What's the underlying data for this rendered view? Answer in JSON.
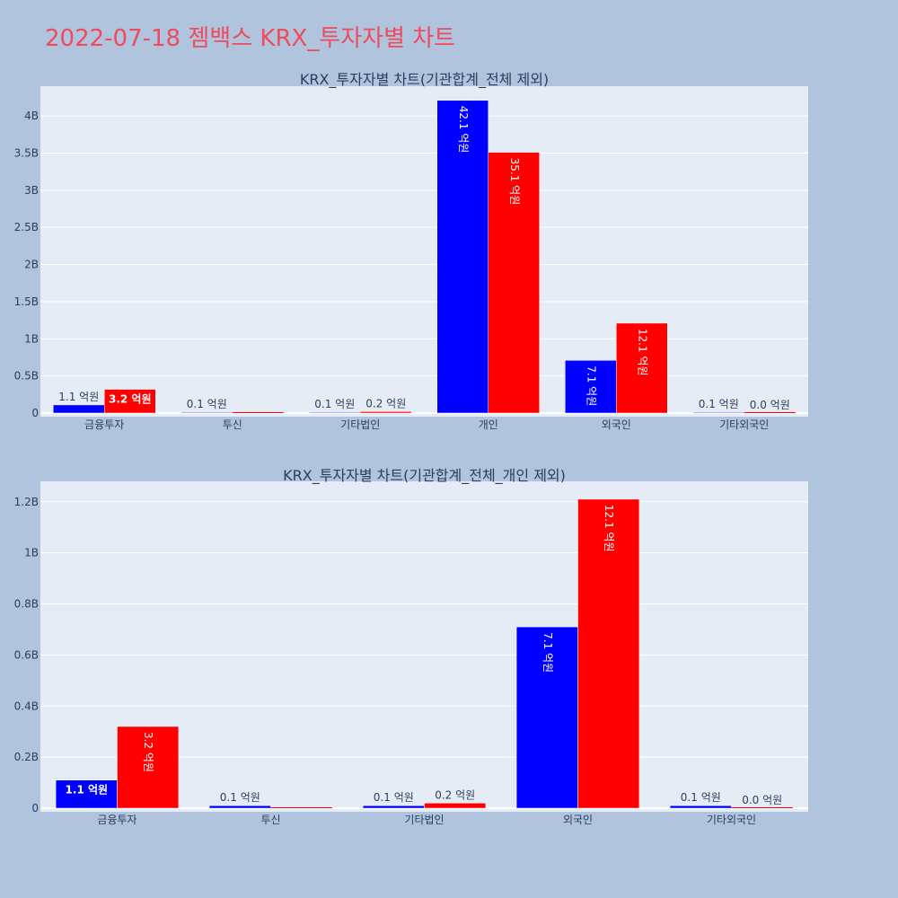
{
  "page": {
    "title": "2022-07-18 젬백스 KRX_투자자별 차트"
  },
  "colors": {
    "background": "#b0c4de",
    "plot_bg": "#e5ecf6",
    "grid": "#ffffff",
    "title": "#ef4b5e",
    "axis_text": "#2a3f5f",
    "series_blue": "#0000ff",
    "series_red": "#ff0000"
  },
  "chart_data": [
    {
      "type": "bar",
      "title": "KRX_투자자별 차트(기관합계_전체 제외)",
      "categories": [
        "금융투자",
        "투신",
        "기타법인",
        "개인",
        "외국인",
        "기타외국인"
      ],
      "ylim": [
        0,
        4.4
      ],
      "y_unit": "B",
      "yticks": [
        0,
        0.5,
        1,
        1.5,
        2,
        2.5,
        3,
        3.5,
        4
      ],
      "ytick_labels": [
        "0",
        "0.5B",
        "1B",
        "1.5B",
        "2B",
        "2.5B",
        "3B",
        "3.5B",
        "4B"
      ],
      "grid": true,
      "series": [
        {
          "color": "#0000ff",
          "values": [
            0.11,
            0.01,
            0.01,
            4.21,
            0.71,
            0.01
          ],
          "labels": [
            "1.1 억원",
            "0.1 억원",
            "0.1 억원",
            "42.1 억원",
            "7.1 억원",
            "0.1 억원"
          ]
        },
        {
          "color": "#ff0000",
          "values": [
            0.32,
            0.0,
            0.02,
            3.51,
            1.21,
            0.0
          ],
          "labels": [
            "3.2 억원",
            "",
            "0.2 억원",
            "35.1 억원",
            "12.1 억원",
            "0.0 억원"
          ]
        }
      ]
    },
    {
      "type": "bar",
      "title": "KRX_투자자별 차트(기관합계_전체_개인 제외)",
      "categories": [
        "금융투자",
        "투신",
        "기타법인",
        "외국인",
        "기타외국인"
      ],
      "ylim": [
        0,
        1.28
      ],
      "y_unit": "B",
      "yticks": [
        0,
        0.2,
        0.4,
        0.6,
        0.8,
        1,
        1.2
      ],
      "ytick_labels": [
        "0",
        "0.2B",
        "0.4B",
        "0.6B",
        "0.8B",
        "1B",
        "1.2B"
      ],
      "grid": true,
      "series": [
        {
          "color": "#0000ff",
          "values": [
            0.11,
            0.01,
            0.01,
            0.71,
            0.01
          ],
          "labels": [
            "1.1 억원",
            "0.1 억원",
            "0.1 억원",
            "7.1 억원",
            "0.1 억원"
          ]
        },
        {
          "color": "#ff0000",
          "values": [
            0.32,
            0.0,
            0.02,
            1.21,
            0.0
          ],
          "labels": [
            "3.2 억원",
            "",
            "0.2 억원",
            "12.1 억원",
            "0.0 억원"
          ]
        }
      ]
    }
  ]
}
